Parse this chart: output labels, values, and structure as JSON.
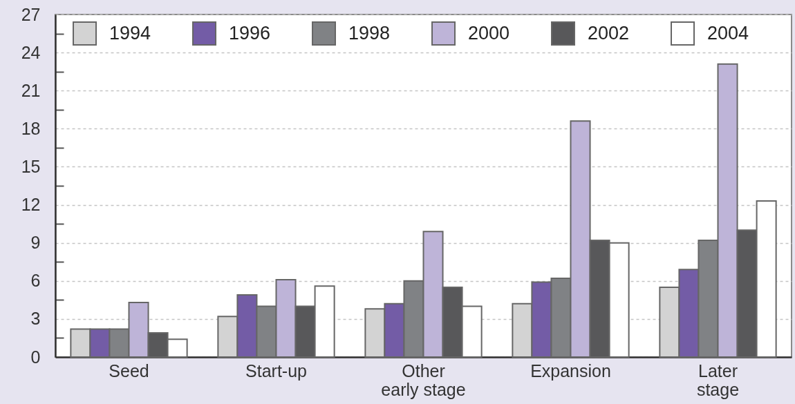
{
  "chart_data": {
    "type": "bar",
    "categories": [
      "Seed",
      "Start-up",
      "Other early stage",
      "Expansion",
      "Later stage"
    ],
    "series": [
      {
        "name": "1994",
        "color": "#d3d3d3",
        "values": [
          2.2,
          3.2,
          3.8,
          4.2,
          5.5
        ]
      },
      {
        "name": "1996",
        "color": "#735ca6",
        "values": [
          2.2,
          4.9,
          4.2,
          5.9,
          6.9
        ]
      },
      {
        "name": "1998",
        "color": "#808285",
        "values": [
          2.2,
          4.0,
          6.0,
          6.2,
          9.2
        ]
      },
      {
        "name": "2000",
        "color": "#beb4d8",
        "values": [
          4.3,
          6.1,
          9.9,
          18.6,
          23.1
        ]
      },
      {
        "name": "2002",
        "color": "#58585a",
        "values": [
          1.9,
          4.0,
          5.5,
          9.2,
          10.0
        ]
      },
      {
        "name": "2004",
        "color": "#ffffff",
        "values": [
          1.4,
          5.6,
          4.0,
          9.0,
          12.3
        ]
      }
    ],
    "ylim": [
      0,
      27
    ],
    "yticks": [
      0,
      {
        "value": 1.5,
        "label": null
      },
      3,
      {
        "value": 4.5,
        "label": null
      },
      6,
      {
        "value": 7.5,
        "label": null
      },
      9,
      {
        "value": 10.5,
        "label": null
      },
      12,
      {
        "value": 13.5,
        "label": null
      },
      15,
      {
        "value": 16.5,
        "label": null
      },
      18,
      {
        "value": 19.5,
        "label": null
      },
      21,
      {
        "value": 22.5,
        "label": null
      },
      24,
      {
        "value": 25.5,
        "label": null
      },
      27
    ],
    "grid": "y",
    "legend": "top"
  }
}
